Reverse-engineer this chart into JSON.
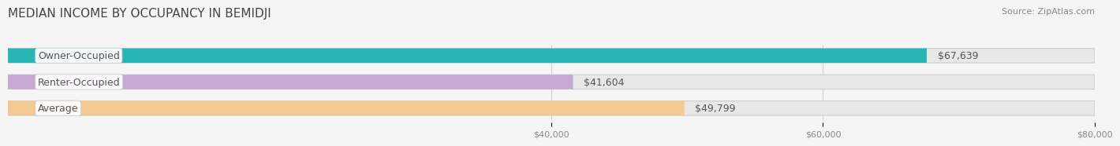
{
  "title": "MEDIAN INCOME BY OCCUPANCY IN BEMIDJI",
  "source": "Source: ZipAtlas.com",
  "categories": [
    "Owner-Occupied",
    "Renter-Occupied",
    "Average"
  ],
  "values": [
    67639,
    41604,
    49799
  ],
  "bar_colors": [
    "#2ab5b5",
    "#c9a8d4",
    "#f5c992"
  ],
  "label_texts": [
    "$67,639",
    "$41,604",
    "$49,799"
  ],
  "xlim": [
    0,
    80000
  ],
  "xticks": [
    40000,
    60000,
    80000
  ],
  "xtick_labels": [
    "$40,000",
    "$60,000",
    "$80,000"
  ],
  "background_color": "#f5f5f5",
  "bar_background_color": "#e8e8e8",
  "title_fontsize": 11,
  "bar_height": 0.55,
  "bar_label_fontsize": 9,
  "category_label_fontsize": 9
}
